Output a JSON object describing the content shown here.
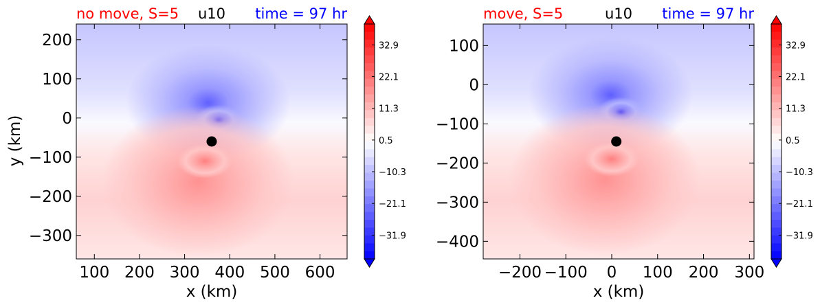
{
  "colors": {
    "left_title": "#ff0000",
    "center_title": "#000000",
    "right_title": "#0000ff",
    "marker": "#000000"
  },
  "chart_data": [
    {
      "type": "heatmap",
      "variable": "u10",
      "title_left": "no move, S=5",
      "title_center": "u10",
      "title_right": "time = 97 hr",
      "xlabel": "x (km)",
      "ylabel": "y (km)",
      "xlim": [
        60,
        660
      ],
      "ylim": [
        -360,
        240
      ],
      "xticks": [
        100,
        200,
        300,
        400,
        500,
        600
      ],
      "xtick_labels": [
        "100",
        "200",
        "300",
        "400",
        "500",
        "600"
      ],
      "yticks": [
        200,
        100,
        0,
        -100,
        -200,
        -300
      ],
      "ytick_labels": [
        "200",
        "100",
        "0",
        "−100",
        "−200",
        "−300"
      ],
      "center_marker": {
        "x": 360,
        "y": -60
      },
      "vortex": {
        "neg_x": 375,
        "neg_y": -5,
        "pos_x": 345,
        "pos_y": -110
      },
      "colorbar": {
        "min": -40,
        "max": 40,
        "extend": "both",
        "tick_values": [
          32.9,
          22.1,
          11.3,
          0.5,
          -10.3,
          -21.1,
          -31.9
        ],
        "tick_labels": [
          "32.9",
          "22.1",
          "11.3",
          "0.5",
          "−10.3",
          "−21.1",
          "−31.9"
        ]
      }
    },
    {
      "type": "heatmap",
      "variable": "u10",
      "title_left": "move, S=5",
      "title_center": "u10",
      "title_right": "time = 97 hr",
      "xlabel": "x (km)",
      "ylabel": "",
      "xlim": [
        -280,
        310
      ],
      "ylim": [
        -445,
        155
      ],
      "xticks": [
        -200,
        -100,
        0,
        100,
        200,
        300
      ],
      "xtick_labels": [
        "−200",
        "−100",
        "0",
        "100",
        "200",
        "300"
      ],
      "yticks": [
        100,
        0,
        -100,
        -200,
        -300,
        -400
      ],
      "ytick_labels": [
        "100",
        "0",
        "−100",
        "−200",
        "−300",
        "−400"
      ],
      "center_marker": {
        "x": 10,
        "y": -145
      },
      "vortex": {
        "neg_x": 20,
        "neg_y": -70,
        "pos_x": 0,
        "pos_y": -190
      },
      "colorbar": {
        "min": -40,
        "max": 40,
        "extend": "both",
        "tick_values": [
          32.9,
          22.1,
          11.3,
          0.5,
          -10.3,
          -21.1,
          -31.9
        ],
        "tick_labels": [
          "32.9",
          "22.1",
          "11.3",
          "0.5",
          "−10.3",
          "−21.1",
          "−31.9"
        ]
      }
    }
  ]
}
